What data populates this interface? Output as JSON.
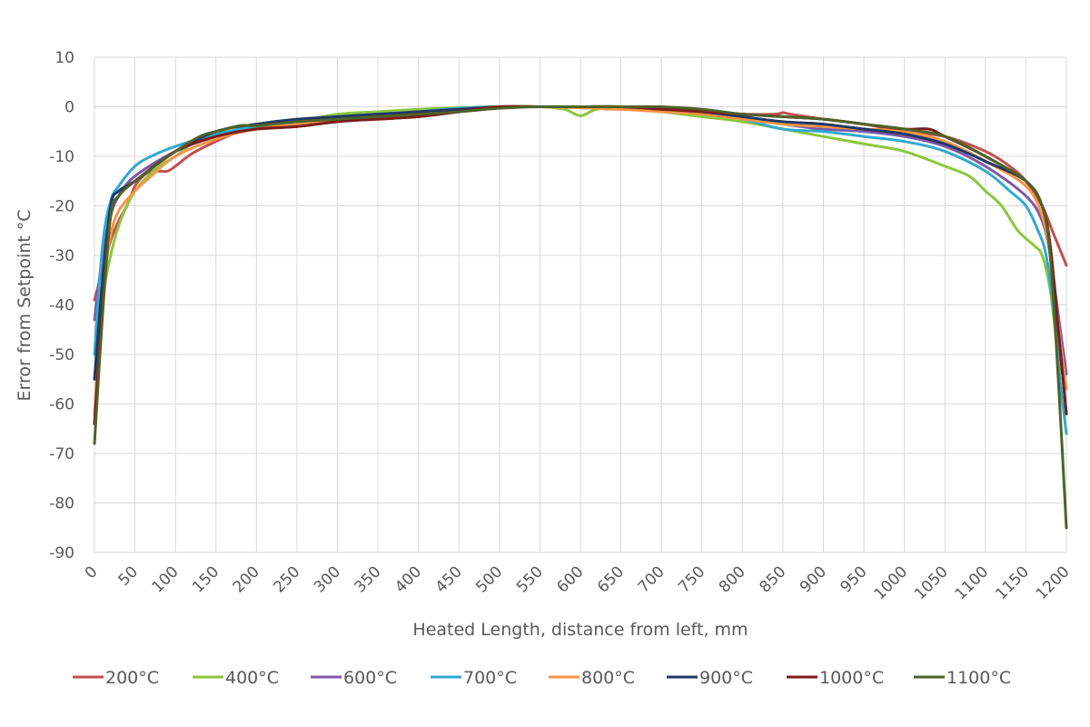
{
  "chart_data": {
    "type": "line",
    "title": "",
    "xlabel": "Heated Length, distance from left, mm",
    "ylabel": "Error from Setpoint °C",
    "xlim": [
      0,
      1200
    ],
    "ylim": [
      -90,
      10
    ],
    "x_ticks": [
      "0",
      "50",
      "100",
      "150",
      "200",
      "250",
      "300",
      "350",
      "400",
      "450",
      "500",
      "550",
      "600",
      "650",
      "700",
      "750",
      "800",
      "850",
      "900",
      "950",
      "1000",
      "1050",
      "1100",
      "1150",
      "1200"
    ],
    "y_ticks": [
      "10",
      "0",
      "-10",
      "-20",
      "-30",
      "-40",
      "-50",
      "-60",
      "-70",
      "-80",
      "-90"
    ],
    "grid": true,
    "legend_position": "bottom",
    "series": [
      {
        "name": "200°C",
        "color": "#c0504d",
        "points": [
          [
            0,
            -39
          ],
          [
            10,
            -33
          ],
          [
            20,
            -27
          ],
          [
            30,
            -23
          ],
          [
            40,
            -20
          ],
          [
            50,
            -16
          ],
          [
            60,
            -14
          ],
          [
            70,
            -13
          ],
          [
            80,
            -13
          ],
          [
            90,
            -13
          ],
          [
            100,
            -12
          ],
          [
            120,
            -9.5
          ],
          [
            150,
            -7
          ],
          [
            180,
            -5
          ],
          [
            200,
            -4.5
          ],
          [
            250,
            -4
          ],
          [
            300,
            -3
          ],
          [
            350,
            -2.5
          ],
          [
            400,
            -2
          ],
          [
            450,
            -1
          ],
          [
            500,
            0
          ],
          [
            550,
            0
          ],
          [
            600,
            -0.2
          ],
          [
            650,
            -0.5
          ],
          [
            700,
            -0.5
          ],
          [
            750,
            -1
          ],
          [
            800,
            -1.5
          ],
          [
            840,
            -1.5
          ],
          [
            850,
            -1.2
          ],
          [
            860,
            -1.5
          ],
          [
            900,
            -2.5
          ],
          [
            950,
            -3.5
          ],
          [
            1000,
            -5
          ],
          [
            1050,
            -6
          ],
          [
            1100,
            -9
          ],
          [
            1130,
            -12
          ],
          [
            1150,
            -15
          ],
          [
            1170,
            -20
          ],
          [
            1185,
            -26
          ],
          [
            1200,
            -32
          ]
        ]
      },
      {
        "name": "400°C",
        "color": "#8cc63e",
        "points": [
          [
            0,
            -64
          ],
          [
            10,
            -40
          ],
          [
            20,
            -30
          ],
          [
            30,
            -24
          ],
          [
            40,
            -20
          ],
          [
            50,
            -17
          ],
          [
            60,
            -15
          ],
          [
            80,
            -12
          ],
          [
            100,
            -10
          ],
          [
            120,
            -7.5
          ],
          [
            150,
            -5.5
          ],
          [
            200,
            -4
          ],
          [
            250,
            -3
          ],
          [
            300,
            -1.5
          ],
          [
            350,
            -1
          ],
          [
            400,
            -0.5
          ],
          [
            450,
            -0.2
          ],
          [
            500,
            0
          ],
          [
            550,
            0
          ],
          [
            580,
            -0.5
          ],
          [
            600,
            -1.8
          ],
          [
            620,
            -0.5
          ],
          [
            650,
            -0.2
          ],
          [
            700,
            -1
          ],
          [
            750,
            -2
          ],
          [
            800,
            -3
          ],
          [
            850,
            -4.5
          ],
          [
            900,
            -6
          ],
          [
            950,
            -7.5
          ],
          [
            1000,
            -9
          ],
          [
            1050,
            -12
          ],
          [
            1080,
            -14
          ],
          [
            1100,
            -17
          ],
          [
            1120,
            -20
          ],
          [
            1140,
            -25
          ],
          [
            1160,
            -28
          ],
          [
            1170,
            -30
          ],
          [
            1180,
            -37
          ],
          [
            1190,
            -50
          ],
          [
            1200,
            -57
          ]
        ]
      },
      {
        "name": "600°C",
        "color": "#7e57a9",
        "points": [
          [
            0,
            -43
          ],
          [
            10,
            -30
          ],
          [
            20,
            -22
          ],
          [
            30,
            -18
          ],
          [
            50,
            -14
          ],
          [
            100,
            -9
          ],
          [
            150,
            -6
          ],
          [
            200,
            -4
          ],
          [
            250,
            -3
          ],
          [
            300,
            -2
          ],
          [
            350,
            -1.5
          ],
          [
            400,
            -1
          ],
          [
            450,
            -0.3
          ],
          [
            500,
            0
          ],
          [
            550,
            0
          ],
          [
            600,
            0
          ],
          [
            650,
            0
          ],
          [
            700,
            -0.5
          ],
          [
            750,
            -1
          ],
          [
            800,
            -2
          ],
          [
            850,
            -3.5
          ],
          [
            900,
            -4.5
          ],
          [
            950,
            -5
          ],
          [
            1000,
            -6
          ],
          [
            1050,
            -8
          ],
          [
            1100,
            -12
          ],
          [
            1150,
            -18
          ],
          [
            1170,
            -23
          ],
          [
            1180,
            -30
          ],
          [
            1190,
            -42
          ],
          [
            1200,
            -54
          ]
        ]
      },
      {
        "name": "700°C",
        "color": "#31a9d0",
        "points": [
          [
            0,
            -50
          ],
          [
            10,
            -28
          ],
          [
            20,
            -19
          ],
          [
            30,
            -16
          ],
          [
            50,
            -12
          ],
          [
            70,
            -10
          ],
          [
            100,
            -8
          ],
          [
            150,
            -5.5
          ],
          [
            200,
            -4
          ],
          [
            250,
            -3
          ],
          [
            300,
            -2
          ],
          [
            350,
            -1.5
          ],
          [
            400,
            -1
          ],
          [
            450,
            -0.3
          ],
          [
            500,
            0
          ],
          [
            550,
            0
          ],
          [
            600,
            0
          ],
          [
            650,
            0
          ],
          [
            700,
            -0.3
          ],
          [
            750,
            -1
          ],
          [
            800,
            -2.5
          ],
          [
            850,
            -4.5
          ],
          [
            900,
            -5
          ],
          [
            950,
            -6
          ],
          [
            1000,
            -7
          ],
          [
            1050,
            -9
          ],
          [
            1100,
            -13
          ],
          [
            1130,
            -17
          ],
          [
            1150,
            -20
          ],
          [
            1165,
            -25
          ],
          [
            1175,
            -30
          ],
          [
            1185,
            -42
          ],
          [
            1192,
            -55
          ],
          [
            1200,
            -66
          ]
        ]
      },
      {
        "name": "800°C",
        "color": "#f79646",
        "points": [
          [
            0,
            -62
          ],
          [
            10,
            -38
          ],
          [
            20,
            -26
          ],
          [
            30,
            -21
          ],
          [
            50,
            -17
          ],
          [
            70,
            -14
          ],
          [
            100,
            -10
          ],
          [
            150,
            -6.5
          ],
          [
            200,
            -4.5
          ],
          [
            250,
            -3.5
          ],
          [
            300,
            -2.5
          ],
          [
            350,
            -1.8
          ],
          [
            400,
            -1.2
          ],
          [
            450,
            -0.5
          ],
          [
            500,
            0
          ],
          [
            550,
            0
          ],
          [
            600,
            -0.2
          ],
          [
            650,
            -0.5
          ],
          [
            700,
            -1
          ],
          [
            750,
            -1.5
          ],
          [
            800,
            -2.5
          ],
          [
            850,
            -3.5
          ],
          [
            900,
            -4
          ],
          [
            950,
            -4.5
          ],
          [
            1000,
            -5
          ],
          [
            1050,
            -7
          ],
          [
            1100,
            -11
          ],
          [
            1150,
            -16
          ],
          [
            1170,
            -22
          ],
          [
            1180,
            -30
          ],
          [
            1190,
            -44
          ],
          [
            1200,
            -57
          ]
        ]
      },
      {
        "name": "900°C",
        "color": "#1f3864",
        "points": [
          [
            0,
            -55
          ],
          [
            10,
            -35
          ],
          [
            20,
            -20
          ],
          [
            30,
            -17
          ],
          [
            50,
            -15
          ],
          [
            100,
            -9
          ],
          [
            150,
            -5
          ],
          [
            200,
            -3.5
          ],
          [
            250,
            -2.5
          ],
          [
            300,
            -2
          ],
          [
            350,
            -1.5
          ],
          [
            400,
            -1
          ],
          [
            450,
            -0.5
          ],
          [
            500,
            0
          ],
          [
            550,
            0
          ],
          [
            600,
            0
          ],
          [
            650,
            0
          ],
          [
            700,
            -0.3
          ],
          [
            750,
            -1
          ],
          [
            800,
            -2
          ],
          [
            850,
            -3
          ],
          [
            900,
            -3.5
          ],
          [
            950,
            -4.5
          ],
          [
            1000,
            -5.5
          ],
          [
            1050,
            -7.5
          ],
          [
            1100,
            -11
          ],
          [
            1150,
            -15
          ],
          [
            1170,
            -20
          ],
          [
            1180,
            -28
          ],
          [
            1190,
            -45
          ],
          [
            1200,
            -62
          ]
        ]
      },
      {
        "name": "1000°C",
        "color": "#7b1c1c",
        "points": [
          [
            0,
            -64
          ],
          [
            10,
            -40
          ],
          [
            20,
            -22
          ],
          [
            30,
            -18
          ],
          [
            50,
            -15
          ],
          [
            100,
            -9
          ],
          [
            150,
            -6
          ],
          [
            200,
            -4.5
          ],
          [
            250,
            -4
          ],
          [
            300,
            -3
          ],
          [
            350,
            -2.5
          ],
          [
            400,
            -2
          ],
          [
            450,
            -1
          ],
          [
            500,
            0
          ],
          [
            550,
            0
          ],
          [
            600,
            0
          ],
          [
            650,
            0
          ],
          [
            700,
            -0.5
          ],
          [
            750,
            -1
          ],
          [
            800,
            -1.5
          ],
          [
            850,
            -2
          ],
          [
            900,
            -2.5
          ],
          [
            950,
            -3.5
          ],
          [
            1000,
            -4.5
          ],
          [
            1030,
            -4.5
          ],
          [
            1050,
            -6
          ],
          [
            1100,
            -10
          ],
          [
            1150,
            -15
          ],
          [
            1170,
            -20
          ],
          [
            1180,
            -28
          ],
          [
            1190,
            -45
          ],
          [
            1200,
            -62
          ]
        ]
      },
      {
        "name": "1100°C",
        "color": "#4f6228",
        "points": [
          [
            0,
            -68
          ],
          [
            10,
            -42
          ],
          [
            20,
            -22
          ],
          [
            30,
            -18
          ],
          [
            50,
            -15
          ],
          [
            100,
            -9
          ],
          [
            130,
            -6
          ],
          [
            150,
            -5
          ],
          [
            180,
            -3.8
          ],
          [
            200,
            -3.8
          ],
          [
            250,
            -3
          ],
          [
            300,
            -2.5
          ],
          [
            350,
            -2
          ],
          [
            400,
            -1.5
          ],
          [
            450,
            -1
          ],
          [
            500,
            -0.3
          ],
          [
            550,
            0
          ],
          [
            600,
            0
          ],
          [
            650,
            0
          ],
          [
            700,
            0
          ],
          [
            750,
            -0.5
          ],
          [
            800,
            -1.5
          ],
          [
            850,
            -2
          ],
          [
            900,
            -2.5
          ],
          [
            950,
            -3.5
          ],
          [
            1000,
            -4.5
          ],
          [
            1050,
            -6
          ],
          [
            1100,
            -10
          ],
          [
            1150,
            -15
          ],
          [
            1170,
            -20
          ],
          [
            1180,
            -30
          ],
          [
            1190,
            -55
          ],
          [
            1200,
            -85
          ]
        ]
      }
    ]
  }
}
